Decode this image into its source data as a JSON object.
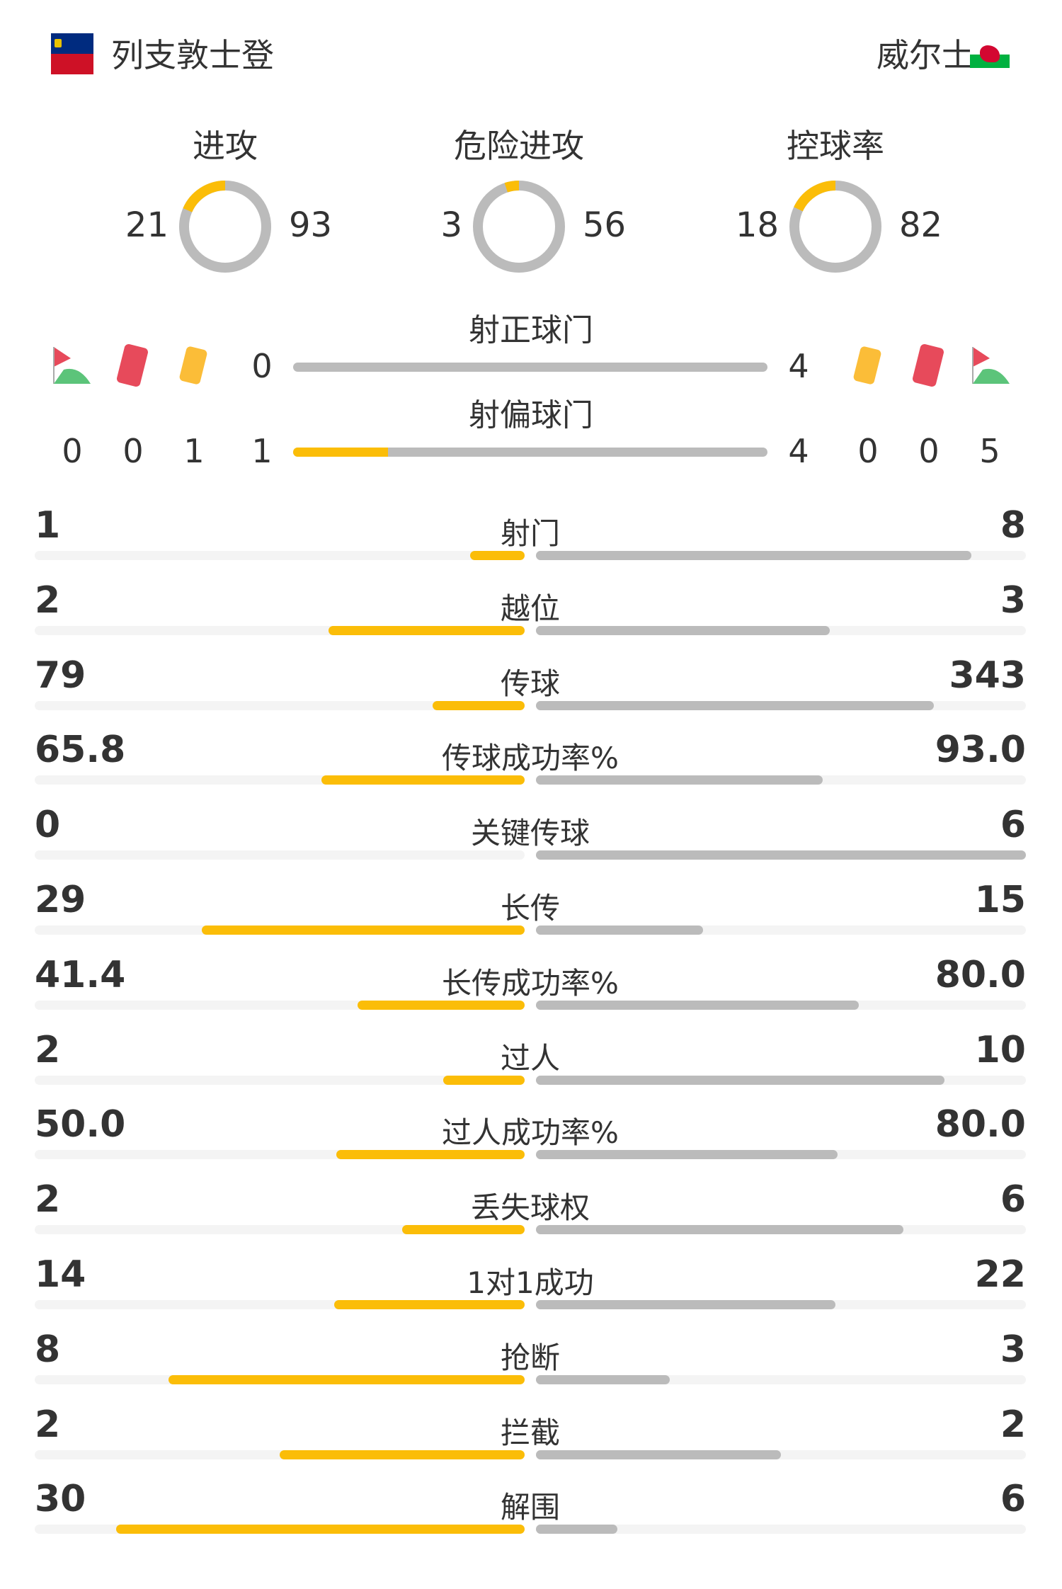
{
  "home": {
    "name": "列支敦士登",
    "flag_colors": [
      "#002b7f",
      "#ce1126"
    ]
  },
  "away": {
    "name": "威尔士",
    "flag_colors": [
      "#ffffff",
      "#00b140",
      "#d30731"
    ]
  },
  "colors": {
    "home": "#fbbd08",
    "away": "#bbbbbb",
    "track": "#f4f4f4"
  },
  "donuts": [
    {
      "label": "进攻",
      "home": "21",
      "away": "93"
    },
    {
      "label": "危险进攻",
      "home": "3",
      "away": "56"
    },
    {
      "label": "控球率",
      "home": "18",
      "away": "82"
    }
  ],
  "events": {
    "on_target": {
      "label": "射正球门",
      "home": "0",
      "away": "4"
    },
    "off_target": {
      "label": "射偏球门",
      "home": "1",
      "away": "4"
    },
    "home": {
      "corners": "0",
      "red_cards": "0",
      "yellow_cards": "1"
    },
    "away": {
      "yellow_cards": "0",
      "red_cards": "0",
      "corners": "5"
    },
    "icons": [
      "corner-flag-icon",
      "red-card-icon",
      "yellow-card-icon"
    ]
  },
  "stats": [
    {
      "label": "射门",
      "home": "1",
      "away": "8"
    },
    {
      "label": "越位",
      "home": "2",
      "away": "3"
    },
    {
      "label": "传球",
      "home": "79",
      "away": "343"
    },
    {
      "label": "传球成功率%",
      "home": "65.8",
      "away": "93.0"
    },
    {
      "label": "关键传球",
      "home": "0",
      "away": "6"
    },
    {
      "label": "长传",
      "home": "29",
      "away": "15"
    },
    {
      "label": "长传成功率%",
      "home": "41.4",
      "away": "80.0"
    },
    {
      "label": "过人",
      "home": "2",
      "away": "10"
    },
    {
      "label": "过人成功率%",
      "home": "50.0",
      "away": "80.0"
    },
    {
      "label": "丢失球权",
      "home": "2",
      "away": "6"
    },
    {
      "label": "1对1成功",
      "home": "14",
      "away": "22"
    },
    {
      "label": "抢断",
      "home": "8",
      "away": "3"
    },
    {
      "label": "拦截",
      "home": "2",
      "away": "2"
    },
    {
      "label": "解围",
      "home": "30",
      "away": "6"
    }
  ]
}
